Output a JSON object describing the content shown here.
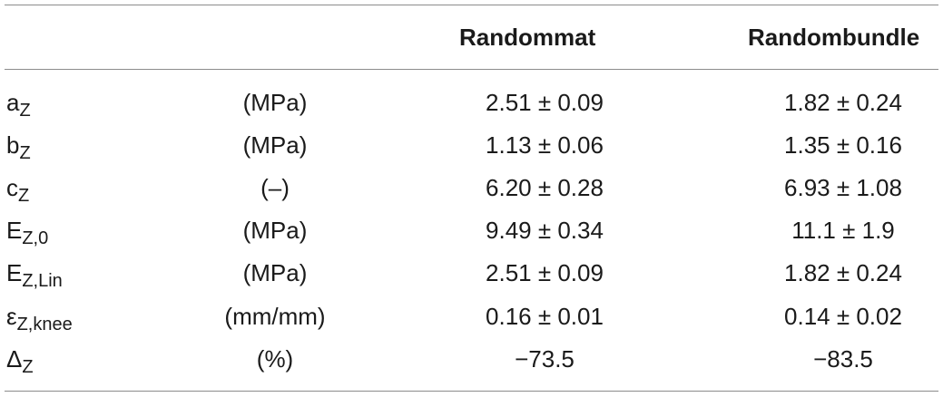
{
  "header": {
    "col_empty_1": "",
    "col_empty_2": "",
    "col_randommat": "Randommat",
    "col_randombundle": "Randombundle"
  },
  "rows": [
    {
      "symbol": "a",
      "subscript": "Z",
      "unit": "(MPa)",
      "randommat": "2.51 ± 0.09",
      "randombundle": "1.82 ± 0.24"
    },
    {
      "symbol": "b",
      "subscript": "Z",
      "unit": "(MPa)",
      "randommat": "1.13 ± 0.06",
      "randombundle": "1.35 ± 0.16"
    },
    {
      "symbol": "c",
      "subscript": "Z",
      "unit": "(–)",
      "randommat": "6.20 ± 0.28",
      "randombundle": "6.93 ± 1.08"
    },
    {
      "symbol": "E",
      "subscript": "Z,0",
      "unit": "(MPa)",
      "randommat": "9.49 ± 0.34",
      "randombundle": "11.1 ± 1.9"
    },
    {
      "symbol": "E",
      "subscript": "Z,Lin",
      "unit": "(MPa)",
      "randommat": "2.51 ± 0.09",
      "randombundle": "1.82 ± 0.24"
    },
    {
      "symbol": "ε",
      "subscript": "Z,knee",
      "unit": "(mm/mm)",
      "randommat": "0.16 ± 0.01",
      "randombundle": "0.14 ± 0.02"
    },
    {
      "symbol": "Δ",
      "subscript": "Z",
      "unit": "(%)",
      "randommat": "−73.5",
      "randombundle": "−83.5"
    }
  ]
}
